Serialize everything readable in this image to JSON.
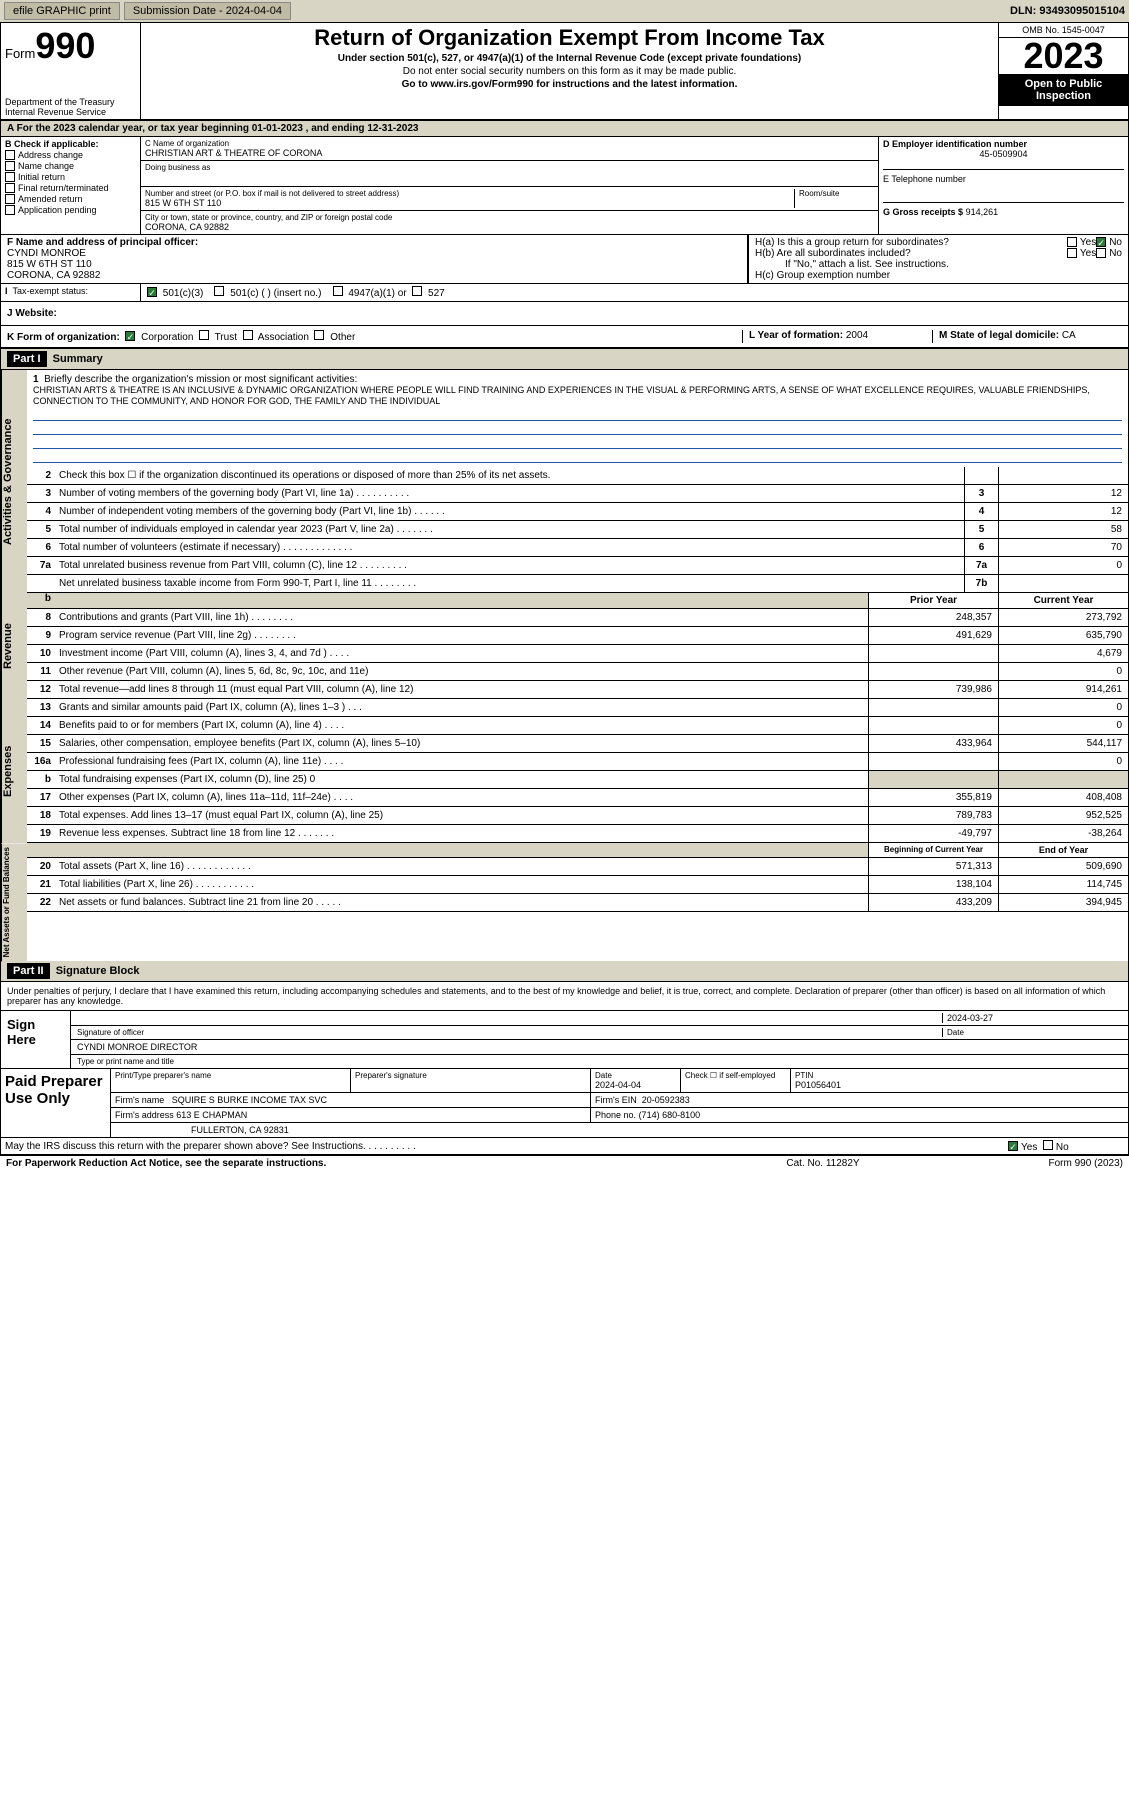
{
  "topbar": {
    "efile": "efile GRAPHIC print",
    "subdate_lbl": "Submission Date - ",
    "subdate": "2024-04-04",
    "dln_lbl": "DLN: ",
    "dln": "93493095015104"
  },
  "header": {
    "form_word": "Form",
    "form_num": "990",
    "dept": "Department of the Treasury\nInternal Revenue Service",
    "title": "Return of Organization Exempt From Income Tax",
    "sub": "Under section 501(c), 527, or 4947(a)(1) of the Internal Revenue Code (except private foundations)",
    "note": "Do not enter social security numbers on this form as it may be made public.",
    "goto": "Go to www.irs.gov/Form990 for instructions and the latest information.",
    "omb": "OMB No. 1545-0047",
    "year": "2023",
    "open": "Open to Public Inspection"
  },
  "A": {
    "line": "A For the 2023 calendar year, or tax year beginning 01-01-2023   , and ending 12-31-2023"
  },
  "B": {
    "lbl": "B Check if applicable:",
    "items": [
      "Address change",
      "Name change",
      "Initial return",
      "Final return/terminated",
      "Amended return",
      "Application pending"
    ]
  },
  "C": {
    "name_lbl": "C Name of organization",
    "name": "CHRISTIAN ART & THEATRE OF CORONA",
    "dba_lbl": "Doing business as",
    "addr_lbl": "Number and street (or P.O. box if mail is not delivered to street address)",
    "suite_lbl": "Room/suite",
    "addr": "815 W 6TH ST 110",
    "city_lbl": "City or town, state or province, country, and ZIP or foreign postal code",
    "city": "CORONA, CA  92882"
  },
  "D": {
    "lbl": "D Employer identification number",
    "val": "45-0509904"
  },
  "E": {
    "lbl": "E Telephone number"
  },
  "G": {
    "lbl": "G Gross receipts $",
    "val": "914,261"
  },
  "F": {
    "lbl": "F  Name and address of principal officer:",
    "name": "CYNDI MONROE",
    "addr": "815 W 6TH ST 110",
    "city": "CORONA, CA  92882"
  },
  "H": {
    "a": "H(a)  Is this a group return for subordinates?",
    "b": "H(b)  Are all subordinates included?",
    "bno": "If \"No,\" attach a list. See instructions.",
    "c": "H(c)  Group exemption number",
    "yes": "Yes",
    "no": "No"
  },
  "I": {
    "lbl": "Tax-exempt status:",
    "o1": "501(c)(3)",
    "o2": "501(c) (  ) (insert no.)",
    "o3": "4947(a)(1) or",
    "o4": "527"
  },
  "J": {
    "lbl": "J   Website:"
  },
  "K": {
    "lbl": "K Form of organization:",
    "o1": "Corporation",
    "o2": "Trust",
    "o3": "Association",
    "o4": "Other"
  },
  "L": {
    "lbl": "L Year of formation:",
    "val": "2004"
  },
  "M": {
    "lbl": "M State of legal domicile:",
    "val": "CA"
  },
  "part1_hdr": "Part I",
  "part1_title": "Summary",
  "mission": {
    "num": "1",
    "lbl": "Briefly describe the organization's mission or most significant activities:",
    "txt": "CHRISTIAN ARTS & THEATRE IS AN INCLUSIVE & DYNAMIC ORGANIZATION WHERE PEOPLE WILL FIND TRAINING AND EXPERIENCES IN THE VISUAL & PERFORMING ARTS, A SENSE OF WHAT EXCELLENCE REQUIRES, VALUABLE FRIENDSHIPS, CONNECTION TO THE COMMUNITY, AND HONOR FOR GOD, THE FAMILY AND THE INDIVIDUAL"
  },
  "lines_gov": [
    {
      "n": "2",
      "t": "Check this box ☐  if the organization discontinued its operations or disposed of more than 25% of its net assets.",
      "box": "",
      "v": ""
    },
    {
      "n": "3",
      "t": "Number of voting members of the governing body (Part VI, line 1a)   .   .   .   .   .   .   .   .   .   .",
      "box": "3",
      "v": "12"
    },
    {
      "n": "4",
      "t": "Number of independent voting members of the governing body (Part VI, line 1b)    .   .   .   .   .   .",
      "box": "4",
      "v": "12"
    },
    {
      "n": "5",
      "t": "Total number of individuals employed in calendar year 2023 (Part V, line 2a)   .   .   .   .   .   .   .",
      "box": "5",
      "v": "58"
    },
    {
      "n": "6",
      "t": "Total number of volunteers (estimate if necessary)   .   .   .   .   .   .   .   .   .   .   .   .   .",
      "box": "6",
      "v": "70"
    },
    {
      "n": "7a",
      "t": "Total unrelated business revenue from Part VIII, column (C), line 12   .   .   .   .   .   .   .   .   .",
      "box": "7a",
      "v": "0"
    },
    {
      "n": "",
      "t": "Net unrelated business taxable income from Form 990-T, Part I, line 11   .   .   .   .   .   .   .   .",
      "box": "7b",
      "v": ""
    }
  ],
  "cols_hdr": {
    "b": "b",
    "py": "Prior Year",
    "cy": "Current Year"
  },
  "lines_rev": [
    {
      "n": "8",
      "t": "Contributions and grants (Part VIII, line 1h)   .   .   .   .   .   .   .   .",
      "py": "248,357",
      "cy": "273,792"
    },
    {
      "n": "9",
      "t": "Program service revenue (Part VIII, line 2g)   .   .   .   .   .   .   .   .",
      "py": "491,629",
      "cy": "635,790"
    },
    {
      "n": "10",
      "t": "Investment income (Part VIII, column (A), lines 3, 4, and 7d )   .   .   .   .",
      "py": "",
      "cy": "4,679"
    },
    {
      "n": "11",
      "t": "Other revenue (Part VIII, column (A), lines 5, 6d, 8c, 9c, 10c, and 11e)",
      "py": "",
      "cy": "0"
    },
    {
      "n": "12",
      "t": "Total revenue—add lines 8 through 11 (must equal Part VIII, column (A), line 12)",
      "py": "739,986",
      "cy": "914,261"
    }
  ],
  "lines_exp": [
    {
      "n": "13",
      "t": "Grants and similar amounts paid (Part IX, column (A), lines 1–3 )   .   .   .",
      "py": "",
      "cy": "0"
    },
    {
      "n": "14",
      "t": "Benefits paid to or for members (Part IX, column (A), line 4)   .   .   .   .",
      "py": "",
      "cy": "0"
    },
    {
      "n": "15",
      "t": "Salaries, other compensation, employee benefits (Part IX, column (A), lines 5–10)",
      "py": "433,964",
      "cy": "544,117"
    },
    {
      "n": "16a",
      "t": "Professional fundraising fees (Part IX, column (A), line 11e)   .   .   .   .",
      "py": "",
      "cy": "0"
    },
    {
      "n": "b",
      "t": "Total fundraising expenses (Part IX, column (D), line 25) 0",
      "py": "GRAY",
      "cy": "GRAY"
    },
    {
      "n": "17",
      "t": "Other expenses (Part IX, column (A), lines 11a–11d, 11f–24e)   .   .   .   .",
      "py": "355,819",
      "cy": "408,408"
    },
    {
      "n": "18",
      "t": "Total expenses. Add lines 13–17 (must equal Part IX, column (A), line 25)",
      "py": "789,783",
      "cy": "952,525"
    },
    {
      "n": "19",
      "t": "Revenue less expenses. Subtract line 18 from line 12   .   .   .   .   .   .   .",
      "py": "-49,797",
      "cy": "-38,264"
    }
  ],
  "cols_hdr2": {
    "py": "Beginning of Current Year",
    "cy": "End of Year"
  },
  "lines_na": [
    {
      "n": "20",
      "t": "Total assets (Part X, line 16)   .   .   .   .   .   .   .   .   .   .   .   .",
      "py": "571,313",
      "cy": "509,690"
    },
    {
      "n": "21",
      "t": "Total liabilities (Part X, line 26)   .   .   .   .   .   .   .   .   .   .   .",
      "py": "138,104",
      "cy": "114,745"
    },
    {
      "n": "22",
      "t": "Net assets or fund balances. Subtract line 21 from line 20   .   .   .   .   .",
      "py": "433,209",
      "cy": "394,945"
    }
  ],
  "vtabs": {
    "gov": "Activities & Governance",
    "rev": "Revenue",
    "exp": "Expenses",
    "na": "Net Assets or Fund Balances"
  },
  "part2_hdr": "Part II",
  "part2_title": "Signature Block",
  "sig_note": "Under penalties of perjury, I declare that I have examined this return, including accompanying schedules and statements, and to the best of my knowledge and belief, it is true, correct, and complete. Declaration of preparer (other than officer) is based on all information of which preparer has any knowledge.",
  "sign": {
    "lbl": "Sign Here",
    "sig_lbl": "Signature of officer",
    "date_lbl": "Date",
    "date": "2024-03-27",
    "name": "CYNDI MONROE DIRECTOR",
    "name_lbl": "Type or print name and title"
  },
  "paid": {
    "lbl": "Paid Preparer Use Only",
    "h1": "Print/Type preparer's name",
    "h2": "Preparer's signature",
    "h3": "Date",
    "h3v": "2024-04-04",
    "h4": "Check ☐ if self-employed",
    "h5": "PTIN",
    "h5v": "P01056401",
    "firm_lbl": "Firm's name",
    "firm": "SQUIRE S BURKE INCOME TAX SVC",
    "ein_lbl": "Firm's EIN",
    "ein": "20-0592383",
    "addr_lbl": "Firm's address",
    "addr": "613 E CHAPMAN",
    "city": "FULLERTON, CA  92831",
    "ph_lbl": "Phone no.",
    "ph": "(714) 680-8100"
  },
  "discuss": "May the IRS discuss this return with the preparer shown above? See Instructions.   .   .   .   .   .   .   .   .   .",
  "footer": {
    "f1": "For Paperwork Reduction Act Notice, see the separate instructions.",
    "f2": "Cat. No. 11282Y",
    "f3": "Form 990 (2023)"
  },
  "colors": {
    "bg_gray": "#d8d5c4",
    "accent": "#2a7a3a",
    "link": "#2255cc"
  }
}
